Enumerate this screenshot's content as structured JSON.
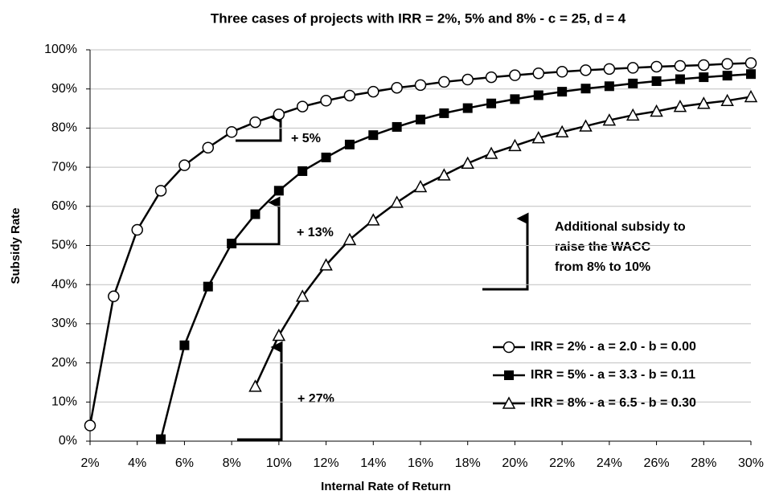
{
  "chart_data": {
    "type": "line",
    "title": "Three cases of projects with IRR = 2%, 5% and 8% - c = 25, d = 4",
    "x_label": "Internal Rate of Return",
    "y_label": "Subsidy Rate",
    "xlim": [
      2,
      30
    ],
    "ylim": [
      0,
      100
    ],
    "xticks": [
      {
        "value": 2,
        "label": "2%"
      },
      {
        "value": 4,
        "label": "4%"
      },
      {
        "value": 6,
        "label": "6%"
      },
      {
        "value": 8,
        "label": "8%"
      },
      {
        "value": 10,
        "label": "10%"
      },
      {
        "value": 12,
        "label": "12%"
      },
      {
        "value": 14,
        "label": "14%"
      },
      {
        "value": 16,
        "label": "16%"
      },
      {
        "value": 18,
        "label": "18%"
      },
      {
        "value": 20,
        "label": "20%"
      },
      {
        "value": 22,
        "label": "22%"
      },
      {
        "value": 24,
        "label": "24%"
      },
      {
        "value": 26,
        "label": "26%"
      },
      {
        "value": 28,
        "label": "28%"
      },
      {
        "value": 30,
        "label": "30%"
      }
    ],
    "yticks": [
      {
        "value": 0,
        "label": "0%"
      },
      {
        "value": 10,
        "label": "10%"
      },
      {
        "value": 20,
        "label": "20%"
      },
      {
        "value": 30,
        "label": "30%"
      },
      {
        "value": 40,
        "label": "40%"
      },
      {
        "value": 50,
        "label": "50%"
      },
      {
        "value": 60,
        "label": "60%"
      },
      {
        "value": 70,
        "label": "70%"
      },
      {
        "value": 80,
        "label": "80%"
      },
      {
        "value": 90,
        "label": "90%"
      },
      {
        "value": 100,
        "label": "100%"
      }
    ],
    "grid": true,
    "legend": "lower right",
    "series": [
      {
        "name": "IRR = 2% - a = 2.0 - b = 0.00",
        "color": "#000000",
        "marker": "circle",
        "x": [
          2,
          3,
          4,
          5,
          6,
          7,
          8,
          9,
          10,
          11,
          12,
          13,
          14,
          15,
          16,
          17,
          18,
          19,
          20,
          21,
          22,
          23,
          24,
          25,
          26,
          27,
          28,
          29,
          30
        ],
        "values": [
          4,
          37,
          54,
          64,
          70.5,
          75,
          79,
          81.5,
          83.5,
          85.5,
          87,
          88.3,
          89.3,
          90.3,
          91,
          91.8,
          92.4,
          93,
          93.5,
          94,
          94.4,
          94.8,
          95.1,
          95.4,
          95.7,
          95.9,
          96.1,
          96.4,
          96.6
        ]
      },
      {
        "name": "IRR = 5% - a = 3.3 - b = 0.11",
        "color": "#000000",
        "marker": "square",
        "x": [
          5,
          6,
          7,
          8,
          9,
          10,
          11,
          12,
          13,
          14,
          15,
          16,
          17,
          18,
          19,
          20,
          21,
          22,
          23,
          24,
          25,
          26,
          27,
          28,
          29,
          30
        ],
        "values": [
          0.5,
          24.5,
          39.5,
          50.5,
          58,
          64,
          69,
          72.5,
          75.8,
          78.2,
          80.3,
          82.2,
          83.8,
          85.1,
          86.3,
          87.4,
          88.4,
          89.3,
          90.1,
          90.7,
          91.4,
          92,
          92.5,
          93,
          93.4,
          93.8
        ]
      },
      {
        "name": "IRR = 8% - a = 6.5 - b = 0.30",
        "color": "#000000",
        "marker": "triangle",
        "x": [
          9,
          10,
          11,
          12,
          13,
          14,
          15,
          16,
          17,
          18,
          19,
          20,
          21,
          22,
          23,
          24,
          25,
          26,
          27,
          28,
          29,
          30
        ],
        "values": [
          14,
          27,
          37,
          45,
          51.5,
          56.5,
          61,
          65,
          68,
          71,
          73.5,
          75.5,
          77.5,
          79,
          80.5,
          82,
          83.3,
          84.3,
          85.5,
          86.3,
          87,
          88
        ]
      }
    ],
    "annotations": [
      "+ 5%",
      "+ 13%",
      "+ 27%"
    ],
    "note": [
      "Additional subsidy to",
      "raise the WACC",
      "from 8% to 10%"
    ]
  }
}
